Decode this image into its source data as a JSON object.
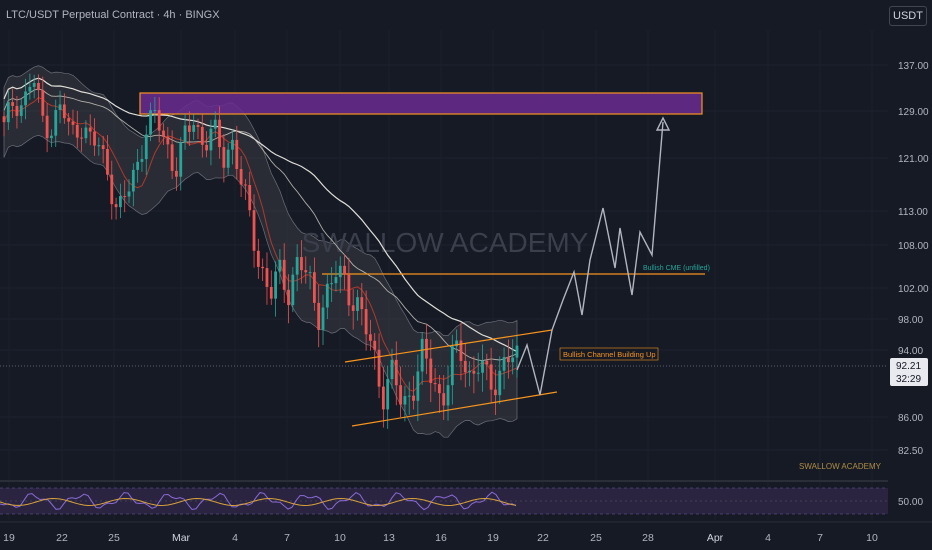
{
  "header": {
    "symbol_title": "LTC/USDT Perpetual Contract · 4h · BINGX",
    "currency_button": "USDT"
  },
  "watermark": "SWALLOW ACADEMY",
  "footer_watermark": "SWALLOW ACADEMY",
  "colors": {
    "background": "#161a25",
    "bull_candle": "#26a69a",
    "bear_candle": "#ef5350",
    "zone_fill": "#6a2c91",
    "zone_border": "#f7941d",
    "orange_line": "#f7941d",
    "projection": "#b2b5be",
    "ma_light": "#e0dfd8",
    "rsi_line": "#8a6bd8",
    "rsi_signal": "#d8a23a"
  },
  "price_axis": {
    "ticks": [
      "137.00",
      "129.00",
      "121.00",
      "113.00",
      "108.00",
      "102.00",
      "98.00",
      "94.00",
      "86.00",
      "82.50"
    ],
    "rsi_tick": "50.00",
    "current_price": "92.21",
    "countdown": "32:29"
  },
  "time_axis": {
    "labels": [
      "19",
      "22",
      "25",
      "Mar",
      "4",
      "7",
      "10",
      "13",
      "16",
      "19",
      "22",
      "25",
      "28",
      "Apr",
      "4",
      "7",
      "10"
    ]
  },
  "annotations": {
    "channel_label": "Bullish Channel Building Up",
    "cme_label": "Bullish CME (unfilled)"
  },
  "chart_data": {
    "type": "candlestick",
    "symbol": "LTC/USDT Perpetual Contract",
    "timeframe": "4h",
    "exchange": "BINGX",
    "y_axis_ticks": [
      137.0,
      129.0,
      121.0,
      113.0,
      108.0,
      102.0,
      98.0,
      94.0,
      86.0,
      82.5
    ],
    "current_price": 92.21,
    "resistance_zone": [
      128.5,
      132.5
    ],
    "cme_gap_level": 103.8,
    "ohlc_path_close": [
      126,
      131,
      130,
      135,
      128,
      126,
      130,
      125,
      127,
      124,
      123,
      119,
      112,
      116,
      120,
      126,
      128,
      124,
      119,
      124,
      128,
      123,
      126,
      121,
      124,
      117,
      111,
      105,
      101,
      104,
      102,
      106,
      103,
      99,
      101,
      104,
      103,
      100,
      97,
      93,
      89,
      91,
      87,
      90,
      93,
      91,
      88,
      92,
      94,
      91,
      93,
      89,
      91,
      94,
      92
    ],
    "rsi_level": 50.0
  }
}
